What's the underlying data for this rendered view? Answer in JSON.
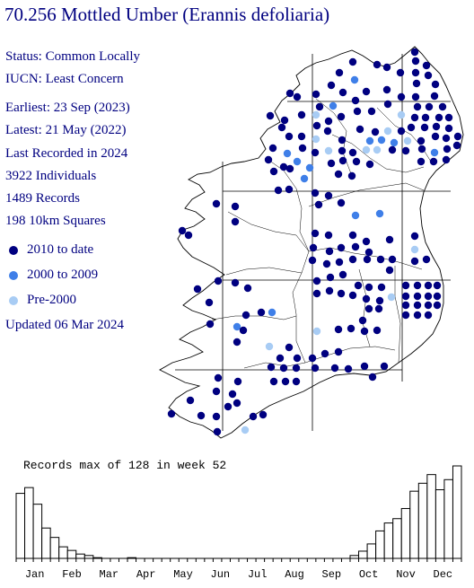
{
  "header": {
    "title": "70.256 Mottled Umber (Erannis defoliaria)"
  },
  "stats": [
    "Status: Common Locally",
    "IUCN: Least Concern",
    "Earliest:  23 Sep (2023)",
    "Latest:   21 May (2022)",
    "Last Recorded in 2024",
    "3922 Individuals",
    "1489 Records",
    "198 10km Squares"
  ],
  "legend": [
    {
      "label": "2010 to date",
      "color": "#000080"
    },
    {
      "label": "2000 to 2009",
      "color": "#3f7fe8"
    },
    {
      "label": "Pre-2000",
      "color": "#a8ccf4"
    }
  ],
  "updated": "Updated 06 Mar 2024",
  "map": {
    "colors": {
      "land_outline": "#000000",
      "grid": "#000000"
    },
    "dots": [
      [
        462,
        58,
        0
      ],
      [
        463,
        68,
        0
      ],
      [
        475,
        73,
        0
      ],
      [
        393,
        69,
        0
      ],
      [
        420,
        72,
        0
      ],
      [
        431,
        75,
        0
      ],
      [
        378,
        81,
        0
      ],
      [
        395,
        89,
        1
      ],
      [
        446,
        81,
        0
      ],
      [
        463,
        81,
        0
      ],
      [
        477,
        84,
        0
      ],
      [
        369,
        95,
        0
      ],
      [
        382,
        103,
        0
      ],
      [
        408,
        102,
        0
      ],
      [
        431,
        100,
        0
      ],
      [
        464,
        93,
        0
      ],
      [
        485,
        94,
        0
      ],
      [
        323,
        104,
        0
      ],
      [
        331,
        108,
        0
      ],
      [
        352,
        105,
        0
      ],
      [
        396,
        112,
        0
      ],
      [
        447,
        108,
        0
      ],
      [
        463,
        108,
        0
      ],
      [
        484,
        107,
        0
      ],
      [
        356,
        119,
        0
      ],
      [
        371,
        118,
        1
      ],
      [
        398,
        124,
        0
      ],
      [
        414,
        124,
        0
      ],
      [
        432,
        116,
        0
      ],
      [
        465,
        119,
        0
      ],
      [
        478,
        119,
        0
      ],
      [
        493,
        119,
        0
      ],
      [
        301,
        129,
        0
      ],
      [
        317,
        134,
        0
      ],
      [
        336,
        128,
        0
      ],
      [
        352,
        128,
        2
      ],
      [
        366,
        135,
        0
      ],
      [
        380,
        130,
        0
      ],
      [
        447,
        128,
        2
      ],
      [
        462,
        131,
        0
      ],
      [
        474,
        131,
        0
      ],
      [
        489,
        131,
        0
      ],
      [
        500,
        131,
        0
      ],
      [
        314,
        142,
        0
      ],
      [
        353,
        140,
        0
      ],
      [
        365,
        146,
        0
      ],
      [
        401,
        144,
        0
      ],
      [
        418,
        147,
        0
      ],
      [
        432,
        146,
        2
      ],
      [
        447,
        146,
        0
      ],
      [
        458,
        142,
        0
      ],
      [
        473,
        142,
        0
      ],
      [
        486,
        141,
        0
      ],
      [
        500,
        143,
        0
      ],
      [
        510,
        152,
        0
      ],
      [
        322,
        152,
        0
      ],
      [
        336,
        152,
        0
      ],
      [
        352,
        155,
        2
      ],
      [
        381,
        156,
        0
      ],
      [
        412,
        157,
        1
      ],
      [
        425,
        156,
        1
      ],
      [
        439,
        159,
        1
      ],
      [
        454,
        157,
        2
      ],
      [
        469,
        157,
        0
      ],
      [
        485,
        152,
        0
      ],
      [
        497,
        154,
        0
      ],
      [
        304,
        165,
        0
      ],
      [
        320,
        171,
        1
      ],
      [
        337,
        165,
        0
      ],
      [
        351,
        170,
        0
      ],
      [
        366,
        168,
        2
      ],
      [
        381,
        168,
        0
      ],
      [
        393,
        170,
        0
      ],
      [
        408,
        167,
        2
      ],
      [
        420,
        167,
        2
      ],
      [
        437,
        167,
        0
      ],
      [
        452,
        168,
        0
      ],
      [
        470,
        166,
        0
      ],
      [
        484,
        170,
        1
      ],
      [
        498,
        166,
        0
      ],
      [
        509,
        162,
        0
      ],
      [
        299,
        178,
        0
      ],
      [
        316,
        186,
        0
      ],
      [
        331,
        180,
        1
      ],
      [
        345,
        187,
        1
      ],
      [
        369,
        182,
        0
      ],
      [
        382,
        179,
        0
      ],
      [
        397,
        180,
        0
      ],
      [
        412,
        183,
        0
      ],
      [
        469,
        180,
        0
      ],
      [
        483,
        180,
        0
      ],
      [
        497,
        178,
        0
      ],
      [
        305,
        191,
        0
      ],
      [
        323,
        188,
        0
      ],
      [
        339,
        199,
        1
      ],
      [
        377,
        194,
        0
      ],
      [
        392,
        196,
        0
      ],
      [
        310,
        212,
        0
      ],
      [
        322,
        211,
        0
      ],
      [
        351,
        215,
        0
      ],
      [
        366,
        218,
        0
      ],
      [
        241,
        227,
        0
      ],
      [
        262,
        230,
        0
      ],
      [
        355,
        228,
        0
      ],
      [
        380,
        226,
        0
      ],
      [
        396,
        240,
        1
      ],
      [
        423,
        238,
        1
      ],
      [
        262,
        247,
        0
      ],
      [
        351,
        260,
        0
      ],
      [
        366,
        262,
        0
      ],
      [
        393,
        262,
        0
      ],
      [
        408,
        269,
        0
      ],
      [
        434,
        267,
        0
      ],
      [
        462,
        263,
        0
      ],
      [
        203,
        257,
        0
      ],
      [
        210,
        262,
        0
      ],
      [
        349,
        276,
        0
      ],
      [
        367,
        280,
        0
      ],
      [
        380,
        276,
        0
      ],
      [
        396,
        275,
        0
      ],
      [
        411,
        281,
        0
      ],
      [
        462,
        278,
        2
      ],
      [
        348,
        290,
        0
      ],
      [
        364,
        294,
        0
      ],
      [
        378,
        292,
        0
      ],
      [
        393,
        289,
        0
      ],
      [
        409,
        289,
        0
      ],
      [
        424,
        289,
        0
      ],
      [
        437,
        289,
        0
      ],
      [
        462,
        291,
        0
      ],
      [
        475,
        289,
        0
      ],
      [
        434,
        301,
        0
      ],
      [
        452,
        318,
        0
      ],
      [
        465,
        318,
        0
      ],
      [
        477,
        318,
        0
      ],
      [
        487,
        318,
        0
      ],
      [
        452,
        330,
        0
      ],
      [
        465,
        330,
        0
      ],
      [
        477,
        330,
        0
      ],
      [
        487,
        330,
        0
      ],
      [
        452,
        340,
        0
      ],
      [
        465,
        340,
        0
      ],
      [
        477,
        340,
        0
      ],
      [
        487,
        340,
        0
      ],
      [
        452,
        351,
        0
      ],
      [
        465,
        351,
        0
      ],
      [
        477,
        351,
        0
      ],
      [
        243,
        313,
        0
      ],
      [
        262,
        315,
        0
      ],
      [
        276,
        321,
        0
      ],
      [
        353,
        313,
        0
      ],
      [
        368,
        309,
        0
      ],
      [
        382,
        306,
        0
      ],
      [
        399,
        318,
        0
      ],
      [
        411,
        320,
        0
      ],
      [
        425,
        320,
        0
      ],
      [
        436,
        331,
        2
      ],
      [
        353,
        327,
        0
      ],
      [
        367,
        324,
        0
      ],
      [
        380,
        327,
        0
      ],
      [
        393,
        329,
        0
      ],
      [
        408,
        333,
        0
      ],
      [
        423,
        335,
        0
      ],
      [
        220,
        322,
        0
      ],
      [
        233,
        337,
        0
      ],
      [
        291,
        348,
        0
      ],
      [
        303,
        348,
        1
      ],
      [
        274,
        351,
        0
      ],
      [
        411,
        344,
        0
      ],
      [
        422,
        344,
        0
      ],
      [
        404,
        357,
        0
      ],
      [
        234,
        361,
        0
      ],
      [
        264,
        364,
        1
      ],
      [
        271,
        368,
        0
      ],
      [
        353,
        369,
        2
      ],
      [
        377,
        367,
        0
      ],
      [
        391,
        366,
        0
      ],
      [
        406,
        369,
        0
      ],
      [
        420,
        368,
        0
      ],
      [
        264,
        381,
        0
      ],
      [
        300,
        386,
        2
      ],
      [
        322,
        387,
        0
      ],
      [
        312,
        399,
        0
      ],
      [
        331,
        399,
        0
      ],
      [
        348,
        399,
        0
      ],
      [
        362,
        394,
        0
      ],
      [
        377,
        392,
        0
      ],
      [
        302,
        409,
        0
      ],
      [
        316,
        410,
        0
      ],
      [
        330,
        410,
        0
      ],
      [
        351,
        410,
        0
      ],
      [
        373,
        410,
        0
      ],
      [
        388,
        411,
        0
      ],
      [
        406,
        408,
        0
      ],
      [
        415,
        420,
        0
      ],
      [
        428,
        408,
        0
      ],
      [
        305,
        425,
        0
      ],
      [
        318,
        425,
        0
      ],
      [
        330,
        425,
        0
      ],
      [
        243,
        421,
        0
      ],
      [
        265,
        425,
        0
      ],
      [
        241,
        436,
        0
      ],
      [
        259,
        439,
        0
      ],
      [
        264,
        449,
        0
      ],
      [
        212,
        446,
        0
      ],
      [
        191,
        461,
        0
      ],
      [
        224,
        463,
        0
      ],
      [
        241,
        464,
        0
      ],
      [
        282,
        464,
        0
      ],
      [
        293,
        462,
        0
      ],
      [
        242,
        481,
        0
      ],
      [
        273,
        479,
        2
      ],
      [
        254,
        453,
        0
      ]
    ]
  },
  "chart_data": {
    "type": "bar",
    "title": "Records max of 128 in week 52",
    "categories": [
      "Jan",
      "Feb",
      "Mar",
      "Apr",
      "May",
      "Jun",
      "Jul",
      "Aug",
      "Sep",
      "Oct",
      "Nov",
      "Dec"
    ],
    "x": [
      1,
      2,
      3,
      4,
      5,
      6,
      7,
      8,
      9,
      10,
      11,
      12,
      13,
      14,
      15,
      16,
      17,
      18,
      19,
      20,
      21,
      22,
      23,
      24,
      25,
      26,
      27,
      28,
      29,
      30,
      31,
      32,
      33,
      34,
      35,
      36,
      37,
      38,
      39,
      40,
      41,
      42,
      43,
      44,
      45,
      46,
      47,
      48,
      49,
      50,
      51,
      52
    ],
    "values": [
      90,
      98,
      75,
      42,
      29,
      16,
      11,
      6,
      4,
      1,
      0,
      0,
      0,
      1,
      0,
      0,
      0,
      0,
      0,
      0,
      0,
      0,
      0,
      0,
      0,
      0,
      0,
      0,
      0,
      0,
      0,
      0,
      0,
      0,
      0,
      0,
      0,
      0,
      0,
      4,
      10,
      20,
      38,
      49,
      55,
      69,
      93,
      104,
      116,
      95,
      109,
      128
    ],
    "xlabel": "",
    "ylabel": "",
    "ylim": [
      0,
      128
    ],
    "grid": false
  }
}
